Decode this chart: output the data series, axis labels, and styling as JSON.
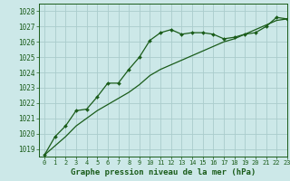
{
  "title": "Graphe pression niveau de la mer (hPa)",
  "background_color": "#cce8e8",
  "grid_color": "#aacccc",
  "line_color": "#1a5c1a",
  "xlim": [
    -0.5,
    23
  ],
  "ylim": [
    1018.5,
    1028.5
  ],
  "yticks": [
    1019,
    1020,
    1021,
    1022,
    1023,
    1024,
    1025,
    1026,
    1027,
    1028
  ],
  "xticks": [
    0,
    1,
    2,
    3,
    4,
    5,
    6,
    7,
    8,
    9,
    10,
    11,
    12,
    13,
    14,
    15,
    16,
    17,
    18,
    19,
    20,
    21,
    22,
    23
  ],
  "line1_x": [
    0,
    1,
    2,
    3,
    4,
    5,
    6,
    7,
    8,
    9,
    10,
    11,
    12,
    13,
    14,
    15,
    16,
    17,
    18,
    19,
    20,
    21,
    22,
    23
  ],
  "line1_y": [
    1018.6,
    1019.8,
    1020.5,
    1021.5,
    1021.6,
    1022.4,
    1023.3,
    1023.3,
    1024.2,
    1025.0,
    1026.1,
    1026.6,
    1026.8,
    1026.5,
    1026.6,
    1026.6,
    1026.5,
    1026.2,
    1026.3,
    1026.5,
    1026.6,
    1027.0,
    1027.6,
    1027.5
  ],
  "line2_x": [
    0,
    1,
    2,
    3,
    4,
    5,
    6,
    7,
    8,
    9,
    10,
    11,
    12,
    13,
    14,
    15,
    16,
    17,
    18,
    19,
    20,
    21,
    22,
    23
  ],
  "line2_y": [
    1018.6,
    1019.2,
    1019.8,
    1020.5,
    1021.0,
    1021.5,
    1021.9,
    1022.3,
    1022.7,
    1023.2,
    1023.8,
    1024.2,
    1024.5,
    1024.8,
    1025.1,
    1025.4,
    1025.7,
    1026.0,
    1026.2,
    1026.5,
    1026.8,
    1027.1,
    1027.4,
    1027.5
  ],
  "ylabel_fontsize": 6.0,
  "xlabel_fontsize": 6.5,
  "title_fontsize": 6.5,
  "tick_fontsize": 5.5,
  "xtick_fontsize": 5.0
}
